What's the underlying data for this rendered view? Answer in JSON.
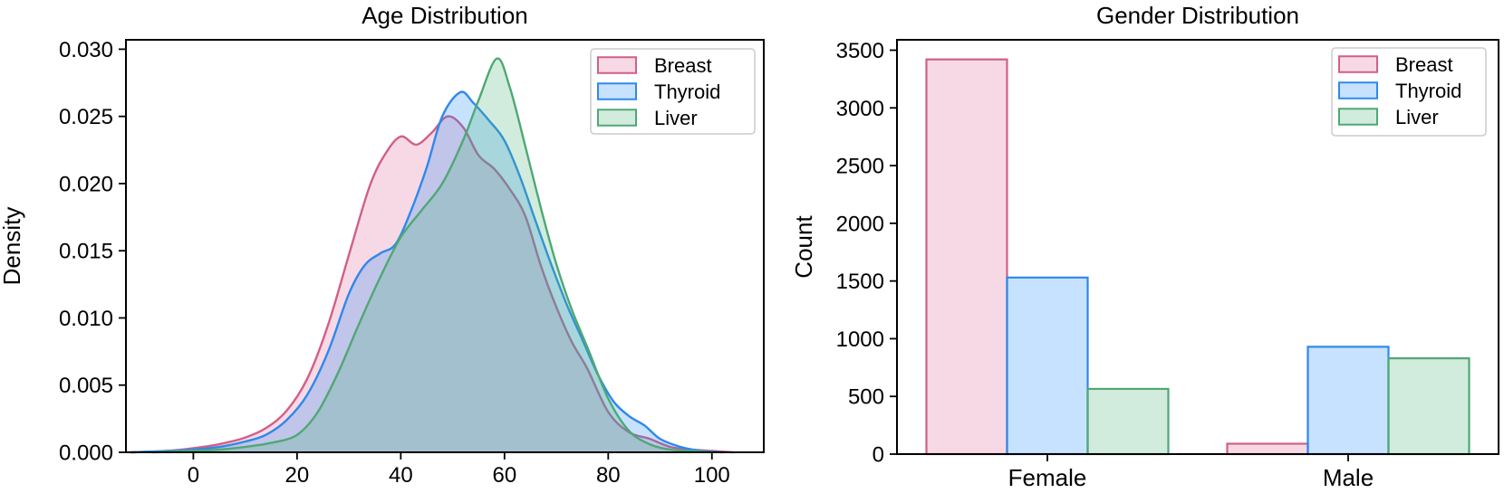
{
  "figure": {
    "background": "#ffffff"
  },
  "chart_data": [
    {
      "type": "area",
      "title": "Age Distribution",
      "xlabel": "",
      "ylabel": "Density",
      "xlim": [
        -13,
        110
      ],
      "ylim": [
        0,
        0.0307
      ],
      "xticks": [
        0,
        20,
        40,
        60,
        80,
        100
      ],
      "yticks": [
        0.0,
        0.005,
        0.01,
        0.015,
        0.02,
        0.025,
        0.03
      ],
      "ytick_decimals": 3,
      "grid": false,
      "legend_position": "upper right",
      "series": [
        {
          "name": "Breast",
          "edge_color": "#d15f87",
          "fill_color": "rgba(225,105,150,0.25)",
          "x": [
            -12,
            -5,
            0,
            5,
            10,
            14,
            18,
            22,
            26,
            30,
            34,
            37,
            40,
            43,
            46,
            49,
            52,
            55,
            58,
            61,
            64,
            67,
            70,
            73,
            76,
            80,
            84,
            88,
            92,
            96,
            100,
            104
          ],
          "y": [
            0,
            0.0001,
            0.0003,
            0.0006,
            0.0011,
            0.0018,
            0.0031,
            0.0055,
            0.0095,
            0.0147,
            0.0198,
            0.0222,
            0.0235,
            0.0229,
            0.0238,
            0.025,
            0.0242,
            0.0221,
            0.0211,
            0.0196,
            0.0176,
            0.0139,
            0.0108,
            0.0082,
            0.0062,
            0.003,
            0.0015,
            0.001,
            0.0004,
            0.0002,
            0.0001,
            0
          ]
        },
        {
          "name": "Thyroid",
          "edge_color": "#2f88ec",
          "fill_color": "rgba(30,140,250,0.25)",
          "x": [
            -12,
            -5,
            0,
            5,
            10,
            14,
            18,
            22,
            26,
            30,
            33,
            36,
            39,
            42,
            45,
            48,
            51.5,
            54,
            57,
            60,
            63,
            66,
            69,
            72,
            75,
            78,
            81,
            84,
            87,
            90,
            94,
            98,
            102
          ],
          "y": [
            0,
            0.0001,
            0.0002,
            0.0004,
            0.0008,
            0.0013,
            0.0024,
            0.0043,
            0.0075,
            0.0118,
            0.0139,
            0.0148,
            0.0155,
            0.018,
            0.0212,
            0.025,
            0.0268,
            0.026,
            0.0247,
            0.0232,
            0.0205,
            0.0172,
            0.014,
            0.011,
            0.0084,
            0.0058,
            0.0038,
            0.0027,
            0.002,
            0.001,
            0.0004,
            0.0001,
            0
          ]
        },
        {
          "name": "Liver",
          "edge_color": "#4fa873",
          "fill_color": "rgba(70,180,120,0.25)",
          "x": [
            -8,
            0,
            5,
            10,
            15,
            20,
            24,
            28,
            32,
            36,
            40,
            44,
            48,
            52,
            55,
            58.5,
            61,
            64,
            67,
            70,
            73,
            76,
            80,
            84,
            88,
            92,
            96,
            100
          ],
          "y": [
            0,
            0.0001,
            0.0002,
            0.0004,
            0.0007,
            0.0013,
            0.003,
            0.006,
            0.0096,
            0.013,
            0.016,
            0.018,
            0.02,
            0.0232,
            0.0262,
            0.0293,
            0.0272,
            0.0228,
            0.0182,
            0.014,
            0.0106,
            0.0078,
            0.004,
            0.0016,
            0.0006,
            0.0002,
            0.0001,
            0
          ]
        }
      ]
    },
    {
      "type": "bar",
      "title": "Gender Distribution",
      "xlabel": "",
      "ylabel": "Count",
      "categories": [
        "Female",
        "Male"
      ],
      "ylim": [
        0,
        3590
      ],
      "yticks": [
        0,
        500,
        1000,
        1500,
        2000,
        2500,
        3000,
        3500
      ],
      "ytick_decimals": 0,
      "grid": false,
      "legend_position": "upper right",
      "series": [
        {
          "name": "Breast",
          "edge_color": "#d15f87",
          "fill_color": "rgba(225,105,150,0.25)",
          "values": [
            3420,
            90
          ]
        },
        {
          "name": "Thyroid",
          "edge_color": "#2f88ec",
          "fill_color": "rgba(30,140,250,0.25)",
          "values": [
            1530,
            930
          ]
        },
        {
          "name": "Liver",
          "edge_color": "#4fa873",
          "fill_color": "rgba(70,180,120,0.25)",
          "values": [
            565,
            830
          ]
        }
      ]
    }
  ]
}
